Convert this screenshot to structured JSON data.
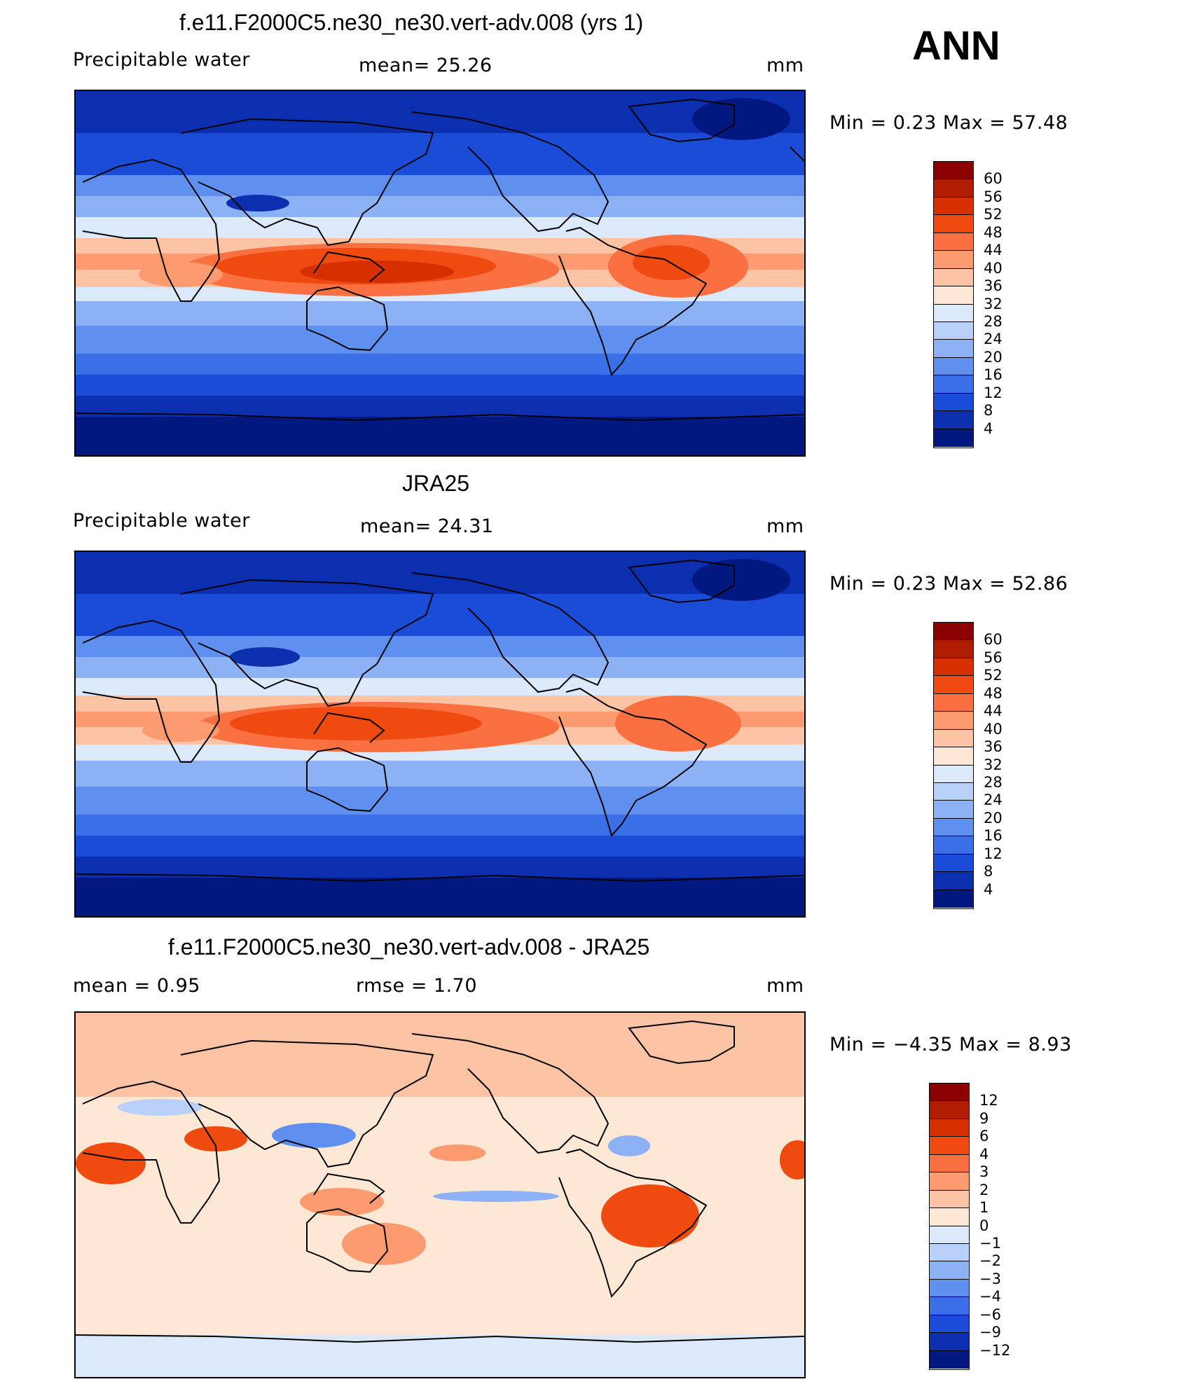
{
  "season": "ANN",
  "panels": [
    {
      "title": "f.e11.F2000C5.ne30_ne30.vert-adv.008 (yrs 1)",
      "left_label": "Precipitable  water",
      "mid_label": "mean=   25.26",
      "units": "mm",
      "minmax": "Min  =     0.23  Max  =    57.48",
      "map_type": "precipitable-water"
    },
    {
      "title": "JRA25",
      "left_label": "Precipitable  water",
      "mid_label": "mean=   24.31",
      "units": "mm",
      "minmax": "Min  =     0.23  Max  =    52.86",
      "map_type": "precipitable-water"
    },
    {
      "title": "f.e11.F2000C5.ne30_ne30.vert-adv.008 - JRA25",
      "left_label": "mean  =     0.95",
      "mid_label": "rmse  =     1.70",
      "units": "mm",
      "minmax": "Min  =   −4.35  Max  =     8.93",
      "map_type": "difference"
    }
  ],
  "colorbars": {
    "abs": {
      "labels": [
        "60",
        "56",
        "52",
        "48",
        "44",
        "40",
        "36",
        "32",
        "28",
        "24",
        "20",
        "16",
        "12",
        "8",
        "4"
      ],
      "colors": [
        "#8b0000",
        "#b01c00",
        "#d63000",
        "#ef4a10",
        "#fb7040",
        "#fc9a70",
        "#fcc4a4",
        "#fde8d6",
        "#dbe9fb",
        "#b8d0fa",
        "#8cb1f5",
        "#5f90f0",
        "#3a6fe8",
        "#1a4cd8",
        "#0c2fb0",
        "#001880"
      ]
    },
    "diff": {
      "labels": [
        "12",
        "9",
        "6",
        "4",
        "3",
        "2",
        "1",
        "0",
        "−1",
        "−2",
        "−3",
        "−4",
        "−6",
        "−9",
        "−12"
      ],
      "colors": [
        "#8b0000",
        "#b01c00",
        "#d63000",
        "#ef4a10",
        "#fb7040",
        "#fc9a70",
        "#fcc4a4",
        "#fde8d6",
        "#dbe9fb",
        "#b8d0fa",
        "#8cb1f5",
        "#5f90f0",
        "#3a6fe8",
        "#1a4cd8",
        "#0c2fb0",
        "#001880"
      ]
    }
  }
}
